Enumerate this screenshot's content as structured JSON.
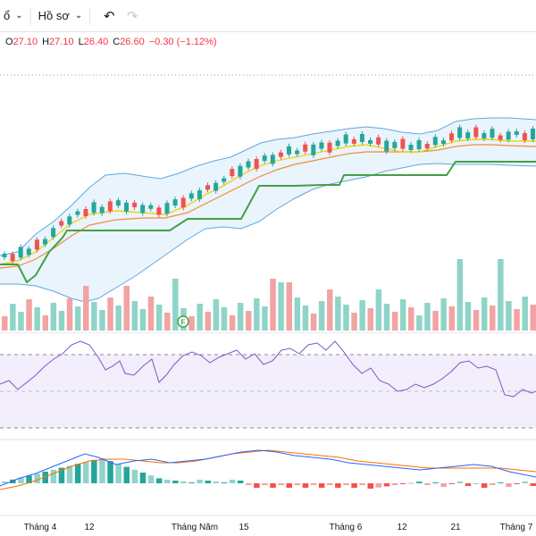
{
  "toolbar": {
    "partial_label": "ổ",
    "profile_label": "Hồ sơ",
    "undo_icon": "undo-icon",
    "redo_icon": "redo-icon"
  },
  "legend": {
    "o_label": "O",
    "o_value": "27.10",
    "h_label": "H",
    "h_value": "27.10",
    "l_label": "L",
    "l_value": "26.40",
    "c_label": "C",
    "c_value": "26.60",
    "change": "−0.30 (−1.12%)"
  },
  "x_axis": {
    "labels": [
      "Tháng 4",
      "12",
      "Tháng Năm",
      "15",
      "Tháng 6",
      "12",
      "21",
      "Tháng 7"
    ]
  },
  "volume_marker": "F",
  "colors": {
    "up": "#26a69a",
    "down": "#ef5350",
    "vol_up": "#8fd4c9",
    "vol_down": "#f2a3a3",
    "bb": "#5fa8e0",
    "ma_fast": "#f5d20f",
    "ma_slow": "#f28c38",
    "supertrend": "#43a047",
    "rsi": "#7e57c2",
    "macd": "#2962ff",
    "signal": "#ff6d00"
  }
}
